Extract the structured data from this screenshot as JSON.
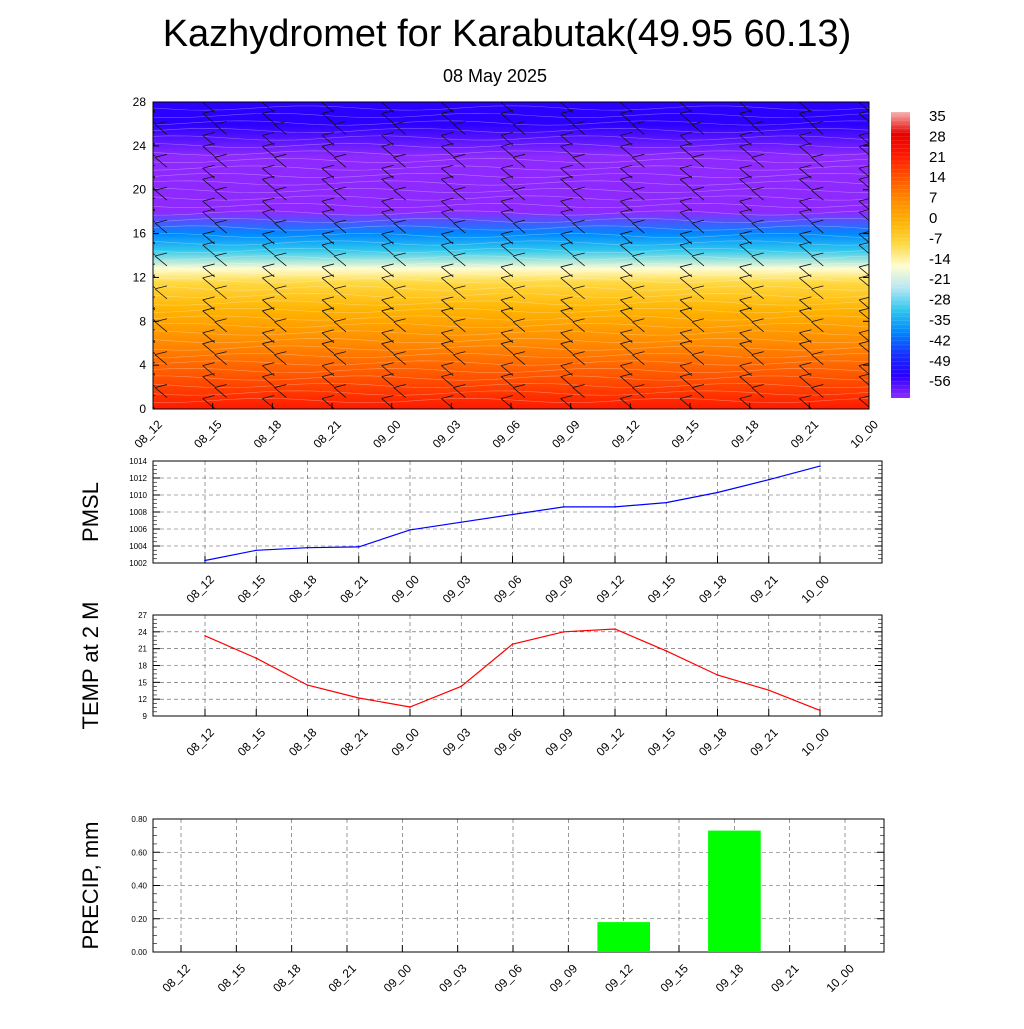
{
  "title": "Kazhydromet for Karabutak(49.95 60.13)",
  "subtitle": "08 May 2025",
  "time_labels": [
    "08_12",
    "08_15",
    "08_18",
    "08_21",
    "09_00",
    "09_03",
    "09_06",
    "09_09",
    "09_12",
    "09_15",
    "09_18",
    "09_21",
    "10_00"
  ],
  "colors": {
    "pmsl_line": "#0000ff",
    "temp_line": "#ff0000",
    "precip_bar": "#00ff00",
    "grid": "#555555"
  },
  "chart_data": [
    {
      "type": "heatmap",
      "title": "",
      "x": [
        "08_12",
        "08_15",
        "08_18",
        "08_21",
        "09_00",
        "09_03",
        "09_06",
        "09_09",
        "09_12",
        "09_15",
        "09_18",
        "09_21",
        "10_00"
      ],
      "yticks": [
        0,
        4,
        8,
        12,
        16,
        20,
        24,
        28
      ],
      "ylim": [
        0,
        28
      ],
      "colorbar": {
        "labels": [
          "35",
          "28",
          "21",
          "14",
          "7",
          "0",
          "-7",
          "-14",
          "-21",
          "-28",
          "-35",
          "-42",
          "-49",
          "-56"
        ],
        "colors": [
          "#f7b1b1",
          "#e80000",
          "#ff1a00",
          "#ff5500",
          "#ff8a00",
          "#ffb300",
          "#ffd840",
          "#fffdd0",
          "#b8e6f2",
          "#2ec7ee",
          "#0088ff",
          "#1530ff",
          "#2a00ff",
          "#8e2aff"
        ]
      },
      "profile": [
        {
          "level": 0,
          "value": 18
        },
        {
          "level": 3,
          "value": 14
        },
        {
          "level": 6,
          "value": 6
        },
        {
          "level": 9,
          "value": -2
        },
        {
          "level": 11.5,
          "value": -9
        },
        {
          "level": 12.8,
          "value": -16
        },
        {
          "level": 14.5,
          "value": -27
        },
        {
          "level": 16,
          "value": -38
        },
        {
          "level": 18,
          "value": -53
        },
        {
          "level": 20.5,
          "value": -60
        },
        {
          "level": 23,
          "value": -57
        },
        {
          "level": 26,
          "value": -52
        },
        {
          "level": 28,
          "value": -50
        }
      ],
      "wind_barbs": true,
      "grid": false
    },
    {
      "type": "line",
      "ylabel": "PMSL",
      "x": [
        "08_12",
        "08_15",
        "08_18",
        "08_21",
        "09_00",
        "09_03",
        "09_06",
        "09_09",
        "09_12",
        "09_15",
        "09_18",
        "09_21",
        "10_00"
      ],
      "series": [
        {
          "values": [
            1002.3,
            1003.5,
            1003.8,
            1003.9,
            1005.9,
            1006.8,
            1007.7,
            1008.6,
            1008.6,
            1009.1,
            1010.3,
            1011.8,
            1013.4
          ]
        }
      ],
      "yticks": [
        "1002",
        "1004",
        "1006",
        "1008",
        "1010",
        "1012",
        "1014"
      ],
      "ylim": [
        1002,
        1014
      ],
      "grid": true
    },
    {
      "type": "line",
      "ylabel": "TEMP at 2 M",
      "x": [
        "08_12",
        "08_15",
        "08_18",
        "08_21",
        "09_00",
        "09_03",
        "09_06",
        "09_09",
        "09_12",
        "09_15",
        "09_18",
        "09_21",
        "10_00"
      ],
      "series": [
        {
          "values": [
            23.3,
            19.3,
            14.5,
            12.2,
            10.6,
            14.3,
            21.8,
            24.0,
            24.5,
            20.6,
            16.3,
            13.6,
            10.0
          ]
        }
      ],
      "yticks": [
        "9",
        "12",
        "15",
        "18",
        "21",
        "24",
        "27"
      ],
      "ylim": [
        9,
        27
      ],
      "grid": true
    },
    {
      "type": "bar",
      "ylabel": "PRECIP, mm",
      "categories": [
        "08_12",
        "08_15",
        "08_18",
        "08_21",
        "09_00",
        "09_03",
        "09_06",
        "09_09",
        "09_12",
        "09_15",
        "09_18",
        "09_21",
        "10_00"
      ],
      "values": [
        0,
        0,
        0,
        0,
        0,
        0,
        0,
        0,
        0.18,
        0,
        0.73,
        0,
        0
      ],
      "yticks": [
        "0.00",
        "0.20",
        "0.40",
        "0.60",
        "0.80"
      ],
      "ylim": [
        0,
        0.8
      ],
      "grid": true
    }
  ]
}
